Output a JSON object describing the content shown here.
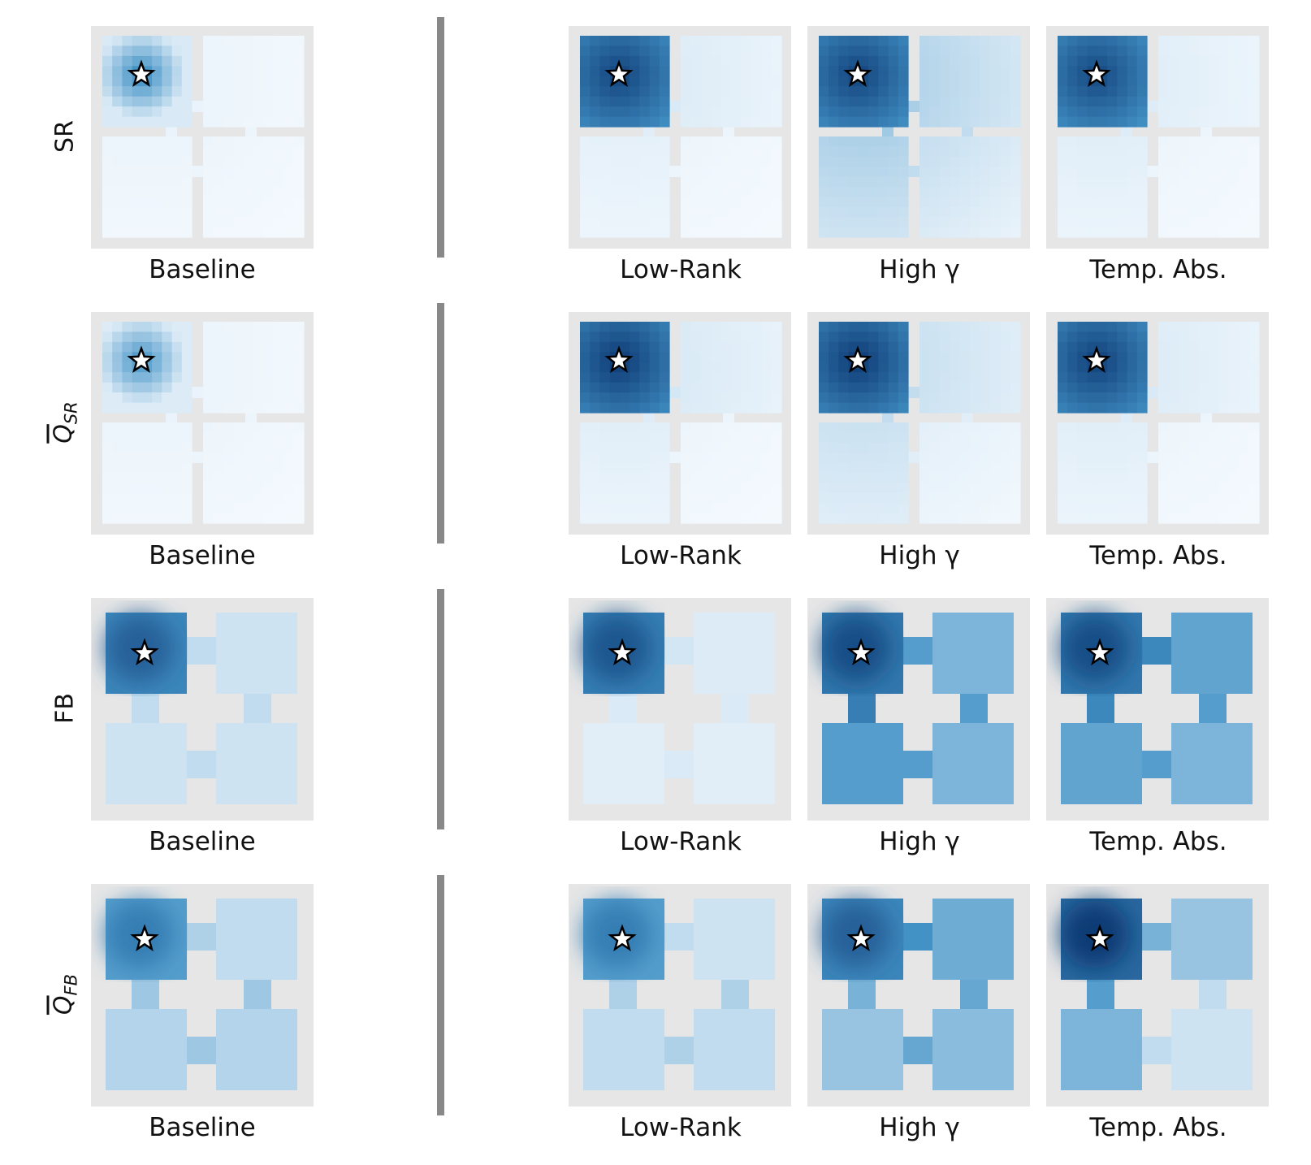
{
  "row_labels": {
    "sr": "SR",
    "q_sr_main": "Q",
    "q_sr_sub": "SR",
    "fb": "FB",
    "q_fb_main": "Q",
    "q_fb_sub": "FB"
  },
  "column_labels": [
    "Baseline",
    "Low-Rank",
    "High γ",
    "Temp. Abs."
  ],
  "colors": {
    "wall": "#e6e6e6",
    "cmap_low": "#f7fbff",
    "cmap_high": "#08306b",
    "divider": "#888888",
    "star_fill": "#ffffff",
    "star_stroke": "#000000"
  },
  "rows": [
    {
      "id": "sr",
      "environment": "gridworld",
      "panels": [
        {
          "method": "Baseline",
          "room_intensity": [
            0.55,
            0.03,
            0.03,
            0.03
          ]
        },
        {
          "method": "Low-Rank",
          "room_intensity": [
            0.9,
            0.07,
            0.05,
            0.03
          ]
        },
        {
          "method": "High γ",
          "room_intensity": [
            0.9,
            0.18,
            0.2,
            0.15
          ]
        },
        {
          "method": "Temp. Abs.",
          "room_intensity": [
            0.88,
            0.06,
            0.06,
            0.03
          ]
        }
      ]
    },
    {
      "id": "q_sr",
      "environment": "gridworld",
      "panels": [
        {
          "method": "Baseline",
          "room_intensity": [
            0.5,
            0.03,
            0.03,
            0.03
          ]
        },
        {
          "method": "Low-Rank",
          "room_intensity": [
            0.95,
            0.08,
            0.06,
            0.03
          ]
        },
        {
          "method": "High γ",
          "room_intensity": [
            0.95,
            0.12,
            0.12,
            0.06
          ]
        },
        {
          "method": "Temp. Abs.",
          "room_intensity": [
            0.92,
            0.07,
            0.06,
            0.03
          ]
        }
      ]
    },
    {
      "id": "fb",
      "environment": "continuous",
      "panels": [
        {
          "method": "Baseline",
          "room_intensity": [
            0.75,
            0.15,
            0.15,
            0.15
          ]
        },
        {
          "method": "Low-Rank",
          "room_intensity": [
            0.8,
            0.1,
            0.08,
            0.08
          ]
        },
        {
          "method": "High γ",
          "room_intensity": [
            0.85,
            0.45,
            0.6,
            0.45
          ]
        },
        {
          "method": "Temp. Abs.",
          "room_intensity": [
            0.85,
            0.55,
            0.55,
            0.45
          ]
        }
      ]
    },
    {
      "id": "q_fb",
      "environment": "continuous",
      "panels": [
        {
          "method": "Baseline",
          "room_intensity": [
            0.6,
            0.2,
            0.25,
            0.25
          ]
        },
        {
          "method": "Low-Rank",
          "room_intensity": [
            0.6,
            0.15,
            0.2,
            0.2
          ]
        },
        {
          "method": "High γ",
          "room_intensity": [
            0.75,
            0.5,
            0.35,
            0.4
          ]
        },
        {
          "method": "Temp. Abs.",
          "room_intensity": [
            0.95,
            0.35,
            0.45,
            0.15
          ]
        }
      ]
    }
  ]
}
